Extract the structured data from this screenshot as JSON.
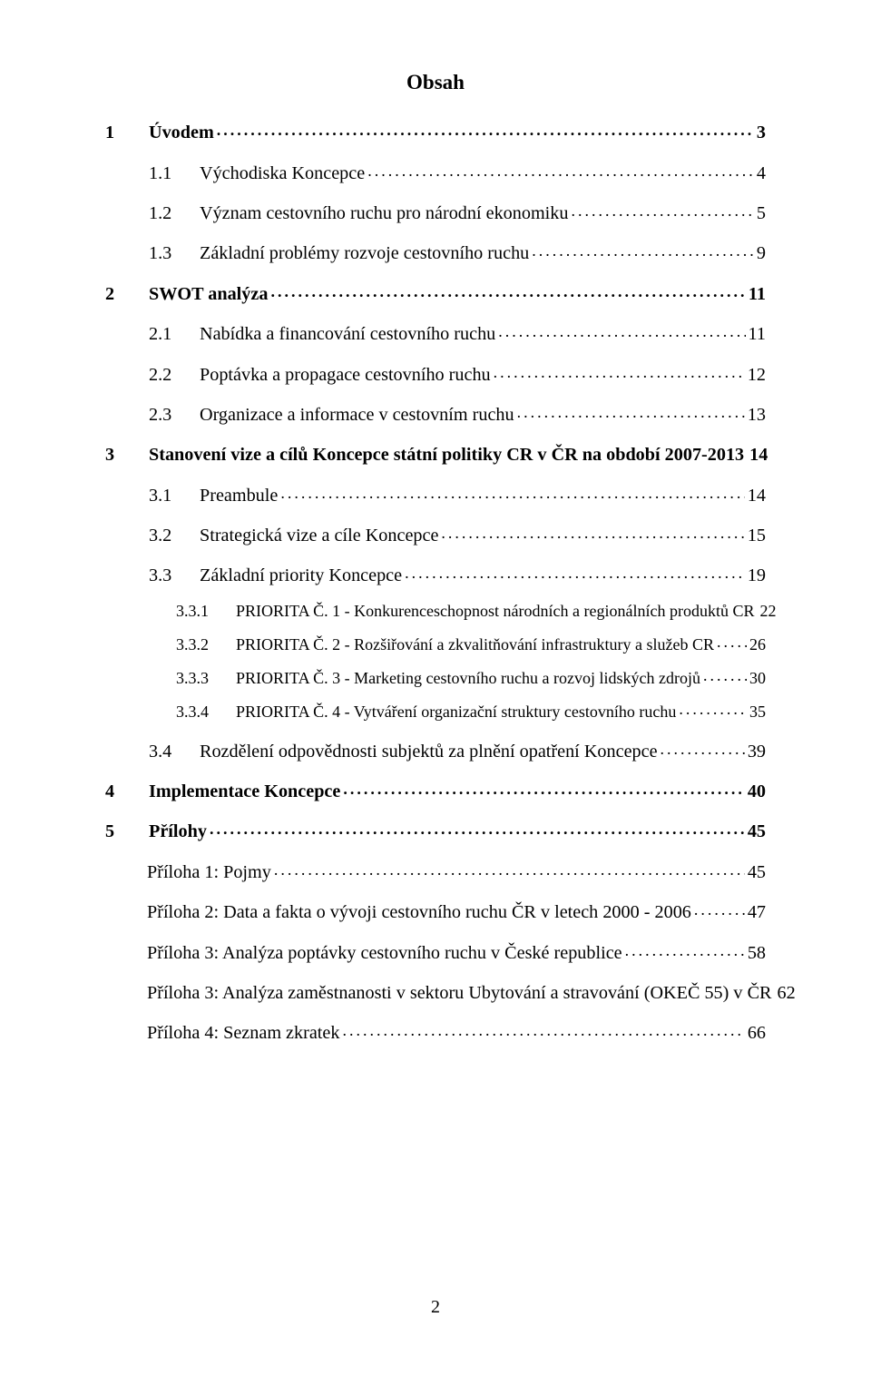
{
  "title": "Obsah",
  "page_number": "2",
  "colors": {
    "text": "#000000",
    "background": "#ffffff"
  },
  "typography": {
    "font_family": "Times New Roman",
    "body_size_pt": 15,
    "title_size_pt": 17
  },
  "entries": [
    {
      "level": 0,
      "bold": true,
      "num": "1",
      "label": "Úvodem",
      "page": "3"
    },
    {
      "level": 1,
      "bold": false,
      "num": "1.1",
      "label": "Východiska Koncepce",
      "page": "4"
    },
    {
      "level": 1,
      "bold": false,
      "num": "1.2",
      "label": "Význam cestovního ruchu pro národní ekonomiku",
      "page": "5"
    },
    {
      "level": 1,
      "bold": false,
      "num": "1.3",
      "label": "Základní problémy rozvoje cestovního ruchu",
      "page": "9"
    },
    {
      "level": 0,
      "bold": true,
      "num": "2",
      "label": "SWOT analýza",
      "page": "11"
    },
    {
      "level": 1,
      "bold": false,
      "num": "2.1",
      "label": "Nabídka a financování cestovního ruchu",
      "page": "11"
    },
    {
      "level": 1,
      "bold": false,
      "num": "2.2",
      "label": "Poptávka a propagace cestovního ruchu",
      "page": "12"
    },
    {
      "level": 1,
      "bold": false,
      "num": "2.3",
      "label": "Organizace a informace v cestovním ruchu",
      "page": "13"
    },
    {
      "level": 0,
      "bold": true,
      "num": "3",
      "label": "Stanovení vize a cílů Koncepce státní politiky CR v ČR na období 2007-2013",
      "page": "14"
    },
    {
      "level": 1,
      "bold": false,
      "num": "3.1",
      "label": "Preambule",
      "page": "14"
    },
    {
      "level": 1,
      "bold": false,
      "num": "3.2",
      "label": "Strategická vize a cíle Koncepce",
      "page": "15"
    },
    {
      "level": 1,
      "bold": false,
      "num": "3.3",
      "label": "Základní priority Koncepce",
      "page": "19"
    },
    {
      "level": 2,
      "bold": false,
      "num": "3.3.1",
      "label": "PRIORITA Č. 1 - Konkurenceschopnost národních a regionálních produktů CR",
      "page": "22"
    },
    {
      "level": 2,
      "bold": false,
      "num": "3.3.2",
      "label": "PRIORITA Č. 2 - Rozšiřování a zkvalitňování infrastruktury a služeb CR",
      "page": "26"
    },
    {
      "level": 2,
      "bold": false,
      "num": "3.3.3",
      "label": "PRIORITA Č. 3 - Marketing cestovního ruchu a rozvoj lidských zdrojů",
      "page": "30"
    },
    {
      "level": 2,
      "bold": false,
      "num": "3.3.4",
      "label": "PRIORITA Č. 4 - Vytváření organizační struktury cestovního ruchu",
      "page": "35"
    },
    {
      "level": 1,
      "bold": false,
      "num": "3.4",
      "label": "Rozdělení odpovědnosti subjektů za plnění opatření Koncepce",
      "page": "39"
    },
    {
      "level": 0,
      "bold": true,
      "num": "4",
      "label": "Implementace Koncepce",
      "page": "40"
    },
    {
      "level": 0,
      "bold": true,
      "num": "5",
      "label": "Přílohy",
      "page": "45"
    },
    {
      "level": "1n",
      "bold": false,
      "num": "",
      "label": "Příloha 1: Pojmy",
      "page": "45"
    },
    {
      "level": "1n",
      "bold": false,
      "num": "",
      "label": "Příloha 2: Data a fakta o vývoji cestovního ruchu ČR v letech 2000 - 2006",
      "page": "47"
    },
    {
      "level": "1n",
      "bold": false,
      "num": "",
      "label": "Příloha 3: Analýza poptávky cestovního ruchu v České republice",
      "page": "58"
    },
    {
      "level": "1n",
      "bold": false,
      "num": "",
      "label": "Příloha 3: Analýza zaměstnanosti v sektoru Ubytování a stravování (OKEČ 55) v ČR",
      "page": "62"
    },
    {
      "level": "1n",
      "bold": false,
      "num": "",
      "label": "Příloha 4: Seznam zkratek",
      "page": "66"
    }
  ]
}
